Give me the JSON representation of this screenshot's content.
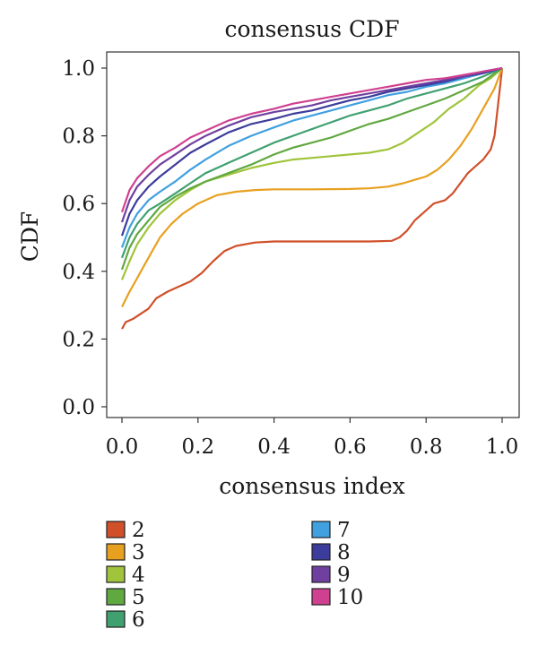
{
  "chart_data": {
    "type": "line",
    "title": "consensus CDF",
    "xlabel": "consensus index",
    "ylabel": "CDF",
    "xlim": [
      0.0,
      1.0
    ],
    "ylim": [
      0.0,
      1.0
    ],
    "x_ticks": [
      "0.0",
      "0.2",
      "0.4",
      "0.6",
      "0.8",
      "1.0"
    ],
    "y_ticks": [
      "0.0",
      "0.2",
      "0.4",
      "0.6",
      "0.8",
      "1.0"
    ],
    "grid": false,
    "legend_placement": "bottom",
    "series": [
      {
        "name": "2",
        "color": "#d0502a",
        "points": [
          [
            0.0,
            0.23
          ],
          [
            0.01,
            0.25
          ],
          [
            0.03,
            0.26
          ],
          [
            0.05,
            0.275
          ],
          [
            0.07,
            0.29
          ],
          [
            0.09,
            0.32
          ],
          [
            0.12,
            0.34
          ],
          [
            0.15,
            0.355
          ],
          [
            0.18,
            0.37
          ],
          [
            0.21,
            0.395
          ],
          [
            0.24,
            0.43
          ],
          [
            0.27,
            0.46
          ],
          [
            0.3,
            0.475
          ],
          [
            0.35,
            0.485
          ],
          [
            0.4,
            0.488
          ],
          [
            0.5,
            0.488
          ],
          [
            0.6,
            0.488
          ],
          [
            0.65,
            0.488
          ],
          [
            0.71,
            0.49
          ],
          [
            0.73,
            0.5
          ],
          [
            0.75,
            0.52
          ],
          [
            0.77,
            0.55
          ],
          [
            0.8,
            0.58
          ],
          [
            0.82,
            0.6
          ],
          [
            0.85,
            0.61
          ],
          [
            0.87,
            0.63
          ],
          [
            0.89,
            0.66
          ],
          [
            0.91,
            0.69
          ],
          [
            0.93,
            0.71
          ],
          [
            0.95,
            0.73
          ],
          [
            0.97,
            0.76
          ],
          [
            0.98,
            0.8
          ],
          [
            0.99,
            0.9
          ],
          [
            1.0,
            1.0
          ]
        ]
      },
      {
        "name": "3",
        "color": "#e8a020",
        "points": [
          [
            0.0,
            0.295
          ],
          [
            0.02,
            0.34
          ],
          [
            0.04,
            0.38
          ],
          [
            0.06,
            0.42
          ],
          [
            0.08,
            0.46
          ],
          [
            0.1,
            0.5
          ],
          [
            0.13,
            0.54
          ],
          [
            0.16,
            0.57
          ],
          [
            0.2,
            0.6
          ],
          [
            0.25,
            0.625
          ],
          [
            0.3,
            0.635
          ],
          [
            0.35,
            0.64
          ],
          [
            0.4,
            0.642
          ],
          [
            0.5,
            0.642
          ],
          [
            0.6,
            0.643
          ],
          [
            0.65,
            0.645
          ],
          [
            0.7,
            0.65
          ],
          [
            0.74,
            0.66
          ],
          [
            0.77,
            0.67
          ],
          [
            0.8,
            0.68
          ],
          [
            0.83,
            0.7
          ],
          [
            0.86,
            0.73
          ],
          [
            0.89,
            0.77
          ],
          [
            0.92,
            0.82
          ],
          [
            0.95,
            0.88
          ],
          [
            0.98,
            0.94
          ],
          [
            1.0,
            1.0
          ]
        ]
      },
      {
        "name": "4",
        "color": "#a0c43c",
        "points": [
          [
            0.0,
            0.375
          ],
          [
            0.02,
            0.43
          ],
          [
            0.04,
            0.48
          ],
          [
            0.07,
            0.53
          ],
          [
            0.1,
            0.57
          ],
          [
            0.14,
            0.61
          ],
          [
            0.18,
            0.64
          ],
          [
            0.22,
            0.665
          ],
          [
            0.28,
            0.685
          ],
          [
            0.34,
            0.705
          ],
          [
            0.4,
            0.72
          ],
          [
            0.45,
            0.73
          ],
          [
            0.5,
            0.735
          ],
          [
            0.55,
            0.74
          ],
          [
            0.6,
            0.745
          ],
          [
            0.65,
            0.75
          ],
          [
            0.7,
            0.76
          ],
          [
            0.74,
            0.78
          ],
          [
            0.78,
            0.81
          ],
          [
            0.82,
            0.84
          ],
          [
            0.86,
            0.88
          ],
          [
            0.9,
            0.91
          ],
          [
            0.94,
            0.95
          ],
          [
            0.97,
            0.97
          ],
          [
            1.0,
            1.0
          ]
        ]
      },
      {
        "name": "5",
        "color": "#60a840",
        "points": [
          [
            0.0,
            0.405
          ],
          [
            0.02,
            0.47
          ],
          [
            0.04,
            0.51
          ],
          [
            0.07,
            0.55
          ],
          [
            0.1,
            0.59
          ],
          [
            0.14,
            0.62
          ],
          [
            0.18,
            0.645
          ],
          [
            0.22,
            0.665
          ],
          [
            0.28,
            0.69
          ],
          [
            0.34,
            0.715
          ],
          [
            0.4,
            0.745
          ],
          [
            0.45,
            0.765
          ],
          [
            0.5,
            0.78
          ],
          [
            0.55,
            0.795
          ],
          [
            0.6,
            0.815
          ],
          [
            0.65,
            0.835
          ],
          [
            0.7,
            0.85
          ],
          [
            0.75,
            0.87
          ],
          [
            0.8,
            0.89
          ],
          [
            0.85,
            0.91
          ],
          [
            0.9,
            0.935
          ],
          [
            0.95,
            0.96
          ],
          [
            1.0,
            1.0
          ]
        ]
      },
      {
        "name": "6",
        "color": "#40a070",
        "points": [
          [
            0.0,
            0.44
          ],
          [
            0.02,
            0.5
          ],
          [
            0.04,
            0.54
          ],
          [
            0.07,
            0.58
          ],
          [
            0.1,
            0.6
          ],
          [
            0.14,
            0.63
          ],
          [
            0.18,
            0.66
          ],
          [
            0.22,
            0.69
          ],
          [
            0.28,
            0.72
          ],
          [
            0.34,
            0.75
          ],
          [
            0.4,
            0.78
          ],
          [
            0.45,
            0.8
          ],
          [
            0.5,
            0.82
          ],
          [
            0.55,
            0.84
          ],
          [
            0.6,
            0.86
          ],
          [
            0.65,
            0.875
          ],
          [
            0.7,
            0.89
          ],
          [
            0.75,
            0.91
          ],
          [
            0.8,
            0.925
          ],
          [
            0.85,
            0.94
          ],
          [
            0.9,
            0.955
          ],
          [
            0.95,
            0.975
          ],
          [
            1.0,
            1.0
          ]
        ]
      },
      {
        "name": "7",
        "color": "#40a0e0",
        "points": [
          [
            0.0,
            0.47
          ],
          [
            0.02,
            0.53
          ],
          [
            0.04,
            0.57
          ],
          [
            0.07,
            0.61
          ],
          [
            0.1,
            0.635
          ],
          [
            0.14,
            0.665
          ],
          [
            0.18,
            0.7
          ],
          [
            0.22,
            0.73
          ],
          [
            0.28,
            0.77
          ],
          [
            0.34,
            0.8
          ],
          [
            0.4,
            0.825
          ],
          [
            0.45,
            0.845
          ],
          [
            0.5,
            0.86
          ],
          [
            0.55,
            0.875
          ],
          [
            0.6,
            0.89
          ],
          [
            0.65,
            0.905
          ],
          [
            0.7,
            0.92
          ],
          [
            0.75,
            0.93
          ],
          [
            0.8,
            0.945
          ],
          [
            0.85,
            0.955
          ],
          [
            0.9,
            0.97
          ],
          [
            0.95,
            0.985
          ],
          [
            1.0,
            1.0
          ]
        ]
      },
      {
        "name": "8",
        "color": "#3c3c9c",
        "points": [
          [
            0.0,
            0.505
          ],
          [
            0.02,
            0.57
          ],
          [
            0.04,
            0.61
          ],
          [
            0.07,
            0.65
          ],
          [
            0.1,
            0.68
          ],
          [
            0.14,
            0.715
          ],
          [
            0.18,
            0.75
          ],
          [
            0.22,
            0.775
          ],
          [
            0.28,
            0.81
          ],
          [
            0.34,
            0.835
          ],
          [
            0.4,
            0.85
          ],
          [
            0.45,
            0.865
          ],
          [
            0.5,
            0.875
          ],
          [
            0.55,
            0.89
          ],
          [
            0.6,
            0.905
          ],
          [
            0.65,
            0.915
          ],
          [
            0.7,
            0.93
          ],
          [
            0.75,
            0.94
          ],
          [
            0.8,
            0.95
          ],
          [
            0.85,
            0.96
          ],
          [
            0.9,
            0.975
          ],
          [
            0.95,
            0.985
          ],
          [
            1.0,
            1.0
          ]
        ]
      },
      {
        "name": "9",
        "color": "#7040a0",
        "points": [
          [
            0.0,
            0.545
          ],
          [
            0.02,
            0.61
          ],
          [
            0.04,
            0.65
          ],
          [
            0.07,
            0.685
          ],
          [
            0.1,
            0.715
          ],
          [
            0.14,
            0.745
          ],
          [
            0.18,
            0.775
          ],
          [
            0.22,
            0.8
          ],
          [
            0.28,
            0.83
          ],
          [
            0.34,
            0.855
          ],
          [
            0.4,
            0.87
          ],
          [
            0.45,
            0.88
          ],
          [
            0.5,
            0.89
          ],
          [
            0.55,
            0.905
          ],
          [
            0.6,
            0.915
          ],
          [
            0.65,
            0.925
          ],
          [
            0.7,
            0.935
          ],
          [
            0.75,
            0.945
          ],
          [
            0.8,
            0.955
          ],
          [
            0.85,
            0.965
          ],
          [
            0.9,
            0.975
          ],
          [
            0.95,
            0.99
          ],
          [
            1.0,
            1.0
          ]
        ]
      },
      {
        "name": "10",
        "color": "#d04090",
        "points": [
          [
            0.0,
            0.575
          ],
          [
            0.02,
            0.64
          ],
          [
            0.04,
            0.675
          ],
          [
            0.07,
            0.71
          ],
          [
            0.1,
            0.74
          ],
          [
            0.14,
            0.765
          ],
          [
            0.18,
            0.795
          ],
          [
            0.22,
            0.815
          ],
          [
            0.28,
            0.845
          ],
          [
            0.34,
            0.865
          ],
          [
            0.4,
            0.88
          ],
          [
            0.45,
            0.895
          ],
          [
            0.5,
            0.905
          ],
          [
            0.55,
            0.915
          ],
          [
            0.6,
            0.925
          ],
          [
            0.65,
            0.935
          ],
          [
            0.7,
            0.945
          ],
          [
            0.75,
            0.955
          ],
          [
            0.8,
            0.965
          ],
          [
            0.85,
            0.97
          ],
          [
            0.9,
            0.98
          ],
          [
            0.95,
            0.99
          ],
          [
            1.0,
            1.0
          ]
        ]
      }
    ]
  }
}
